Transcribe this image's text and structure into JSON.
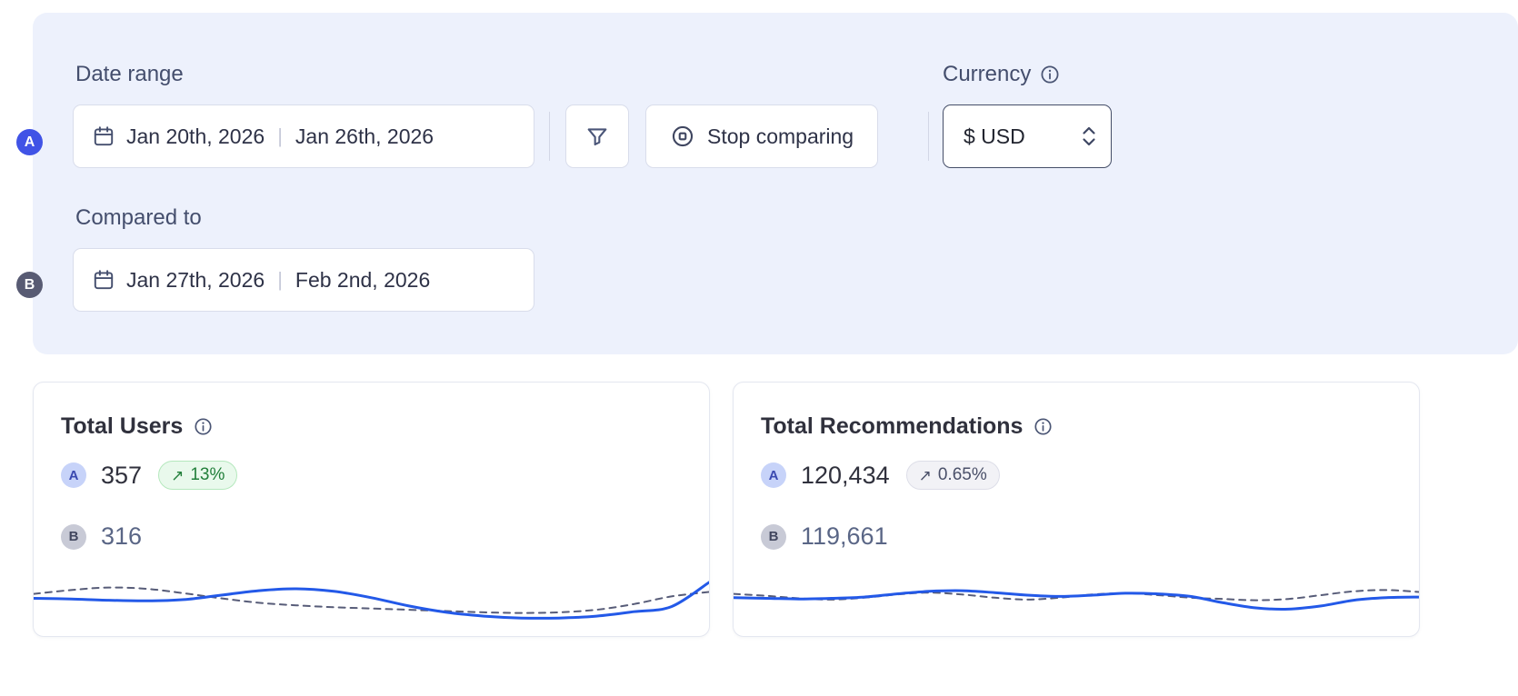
{
  "filters": {
    "date_range_label": "Date range",
    "compared_to_label": "Compared to",
    "currency_label": "Currency",
    "currency_value": "$ USD",
    "stop_comparing_label": "Stop comparing",
    "range_a": {
      "badge": "A",
      "start": "Jan 20th, 2026",
      "separator": "|",
      "end": "Jan 26th, 2026"
    },
    "range_b": {
      "badge": "B",
      "start": "Jan 27th, 2026",
      "separator": "|",
      "end": "Feb 2nd, 2026"
    }
  },
  "cards": [
    {
      "title": "Total Users",
      "series_a": {
        "badge": "A",
        "value": "357",
        "trend_icon": "↗",
        "change": "13%",
        "tone": "positive"
      },
      "series_b": {
        "badge": "B",
        "value": "316"
      }
    },
    {
      "title": "Total Recommendations",
      "series_a": {
        "badge": "A",
        "value": "120,434",
        "trend_icon": "↗",
        "change": "0.65%",
        "tone": "neutral"
      },
      "series_b": {
        "badge": "B",
        "value": "119,661"
      }
    }
  ],
  "colors": {
    "panel_bg": "#edf1fc",
    "line_a": "#2359e8",
    "line_b": "#575c78",
    "badge_a": "#4053e6",
    "badge_b": "#585b73",
    "positive_text": "#217f3a",
    "neutral_text": "#4a5069"
  },
  "chart_data": [
    {
      "type": "line",
      "title": "Total Users",
      "legend": [
        "A",
        "B"
      ],
      "ylim": [
        0,
        1
      ],
      "series": [
        {
          "name": "A",
          "color": "#2359e8",
          "width": 3,
          "dash": null,
          "values": [
            0.45,
            0.44,
            0.42,
            0.41,
            0.43,
            0.5,
            0.57,
            0.6,
            0.56,
            0.46,
            0.33,
            0.23,
            0.17,
            0.14,
            0.14,
            0.17,
            0.24,
            0.32,
            0.7
          ]
        },
        {
          "name": "B",
          "color": "#575c78",
          "width": 2,
          "dash": "7 6",
          "values": [
            0.52,
            0.58,
            0.62,
            0.6,
            0.53,
            0.45,
            0.38,
            0.34,
            0.31,
            0.29,
            0.27,
            0.25,
            0.23,
            0.22,
            0.23,
            0.27,
            0.36,
            0.48,
            0.55
          ]
        }
      ]
    },
    {
      "type": "line",
      "title": "Total Recommendations",
      "legend": [
        "A",
        "B"
      ],
      "ylim": [
        0,
        1
      ],
      "series": [
        {
          "name": "A",
          "color": "#2359e8",
          "width": 3,
          "dash": null,
          "values": [
            0.46,
            0.45,
            0.44,
            0.45,
            0.47,
            0.52,
            0.56,
            0.57,
            0.54,
            0.5,
            0.48,
            0.5,
            0.53,
            0.52,
            0.48,
            0.38,
            0.3,
            0.28,
            0.33,
            0.42,
            0.46,
            0.47
          ]
        },
        {
          "name": "B",
          "color": "#575c78",
          "width": 2,
          "dash": "7 6",
          "values": [
            0.52,
            0.49,
            0.45,
            0.43,
            0.46,
            0.51,
            0.54,
            0.51,
            0.46,
            0.43,
            0.46,
            0.51,
            0.53,
            0.5,
            0.46,
            0.44,
            0.42,
            0.44,
            0.5,
            0.56,
            0.58,
            0.55
          ]
        }
      ]
    }
  ]
}
